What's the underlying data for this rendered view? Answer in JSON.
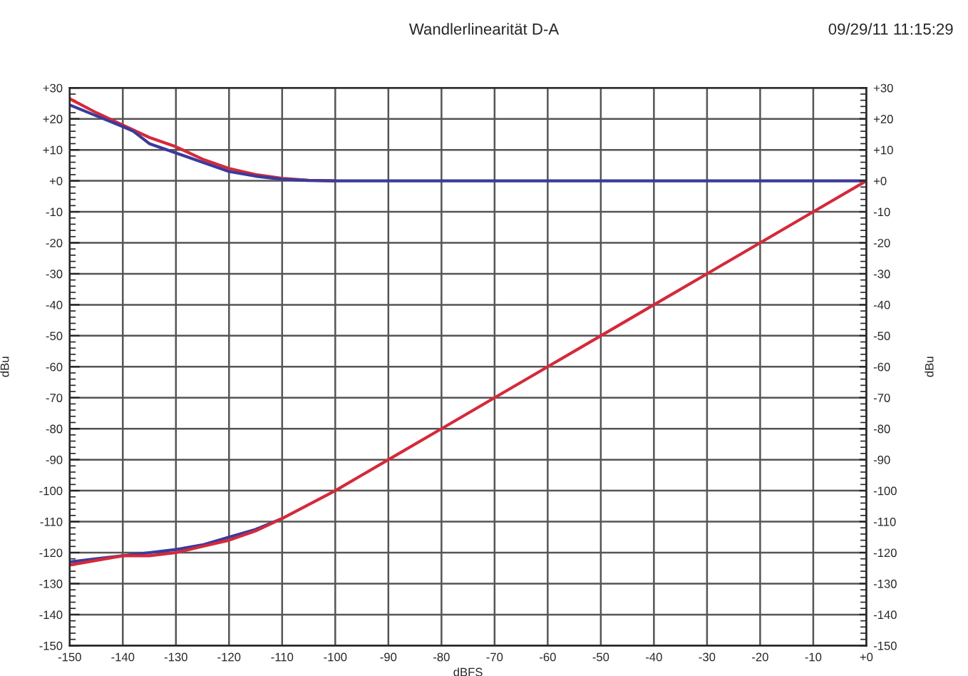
{
  "chart_data": {
    "type": "line",
    "title": "Wandlerlinearität D-A",
    "annotations": [
      "09/29/11 11:15:29"
    ],
    "xlabel": "dBFS",
    "ylabel": "dBu",
    "y2label": "dBu",
    "series": [
      {
        "color": "#d42a3a",
        "x": [
          -150,
          -145,
          -140,
          -135,
          -130,
          -125,
          -120,
          -115,
          -110,
          -105,
          -100
        ],
        "values": [
          26.5,
          22,
          18,
          14,
          11,
          7,
          4,
          2,
          0.8,
          0.2,
          0
        ]
      },
      {
        "color": "#3b3b9c",
        "x": [
          -150,
          -145,
          -140,
          -138,
          -135,
          -130,
          -125,
          -120,
          -115,
          -110,
          -105,
          -100,
          -90,
          -80,
          -70,
          -60,
          -50,
          -40,
          -30,
          -20,
          -10,
          0
        ],
        "values": [
          24.5,
          21,
          17.5,
          16,
          12,
          9,
          6,
          3,
          1.5,
          0.5,
          0.1,
          0,
          0,
          0,
          0,
          0,
          0,
          0,
          0,
          0,
          0,
          0
        ]
      },
      {
        "color": "#3b3b9c",
        "x": [
          -150,
          -145,
          -140,
          -135,
          -130,
          -125,
          -120,
          -115,
          -110
        ],
        "values": [
          -123,
          -122,
          -121,
          -120,
          -119,
          -117.5,
          -115,
          -112.5,
          -109
        ]
      },
      {
        "color": "#d42a3a",
        "x": [
          -150,
          -145,
          -140,
          -135,
          -130,
          -125,
          -120,
          -115,
          -110,
          -100,
          -90,
          -80,
          -70,
          -60,
          -50,
          -40,
          -30,
          -20,
          -10,
          0
        ],
        "values": [
          -124,
          -122.5,
          -121,
          -121,
          -120,
          -118,
          -116,
          -113,
          -109,
          -100,
          -90,
          -80,
          -70,
          -60,
          -50,
          -40,
          -30,
          -20,
          -10,
          0
        ]
      }
    ],
    "xlim": [
      -150,
      0
    ],
    "xticks": [
      -150,
      -140,
      -130,
      -120,
      -110,
      -100,
      -90,
      -80,
      -70,
      -60,
      -50,
      -40,
      -30,
      -20,
      -10,
      {
        "value": 0,
        "label": "+0"
      }
    ],
    "ylim": [
      -150,
      30
    ],
    "yticks": [
      {
        "value": 30,
        "label": "+30"
      },
      {
        "value": 20,
        "label": "+20"
      },
      {
        "value": 10,
        "label": "+10"
      },
      {
        "value": 0,
        "label": "+0"
      },
      -10,
      -20,
      -30,
      -40,
      -50,
      -60,
      -70,
      -80,
      -90,
      -100,
      -110,
      -120,
      -130,
      -140,
      -150
    ],
    "y2lim": [
      -150,
      30
    ],
    "y2ticks": [
      {
        "value": 30,
        "label": "+30"
      },
      {
        "value": 20,
        "label": "+20"
      },
      {
        "value": 10,
        "label": "+10"
      },
      {
        "value": 0,
        "label": "+0"
      },
      -10,
      -20,
      -30,
      -40,
      -50,
      -60,
      -70,
      -80,
      -90,
      -100,
      -110,
      -120,
      -130,
      -140,
      -150
    ],
    "grid": true,
    "marker": "none",
    "line_style": "solid"
  }
}
